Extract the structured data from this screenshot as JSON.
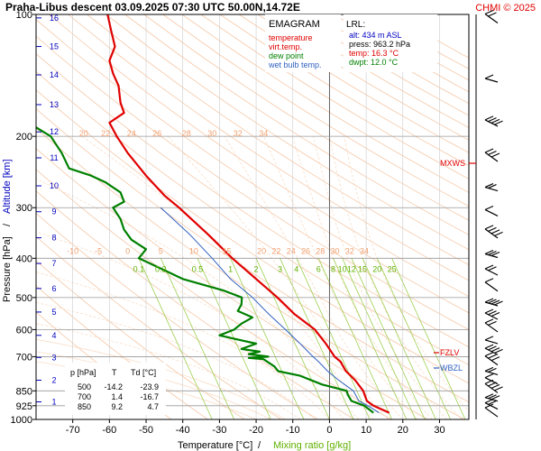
{
  "header": {
    "title": "Praha-Libus   descent   03.09.2025 07:30 UTC   50.00N,14.72E",
    "copyright": "CHMI © 2025"
  },
  "legend": {
    "title": "EMAGRAM",
    "items": [
      {
        "label": "temperature",
        "color": "#e00000"
      },
      {
        "label": "virt.temp.",
        "color": "#e00000"
      },
      {
        "label": "dew point",
        "color": "#008000"
      },
      {
        "label": "wet bulb temp.",
        "color": "#3060c0"
      }
    ]
  },
  "lrl": {
    "title": "LRL:",
    "lines": [
      {
        "text": "alt: 434 m ASL",
        "color": "#0000c0"
      },
      {
        "text": "press: 963.2 hPa",
        "color": "#000000"
      },
      {
        "text": "temp: 16.3 °C",
        "color": "#e00000"
      },
      {
        "text": "dwpt: 12.0 °C",
        "color": "#008000"
      }
    ]
  },
  "table": {
    "headers": [
      "p [hPa]",
      "T",
      "Td [°C]"
    ],
    "rows": [
      [
        "500",
        "-14.2",
        "-23.9"
      ],
      [
        "700",
        "1.4",
        "-16.7"
      ],
      [
        "850",
        "9.2",
        "4.7"
      ]
    ]
  },
  "axes": {
    "x_label": "Temperature [°C]",
    "x_label_sep": "/",
    "x_label2": "Mixing ratio [g/kg]",
    "y_label": "Pressure [hPa]",
    "y_label_sep": "/",
    "y_label2": "Altitude [km]"
  },
  "markers": {
    "mxws": "MXWS",
    "fzlv": "FZLV",
    "wbzl": "WBZL"
  },
  "chart_data": {
    "type": "line",
    "x_axis": {
      "label": "Temperature [°C]",
      "range": [
        -80,
        38
      ],
      "ticks": [
        -70,
        -60,
        -50,
        -40,
        -30,
        -20,
        -10,
        0,
        10,
        20,
        30
      ]
    },
    "y_axis": {
      "label": "Pressure [hPa]",
      "scale": "log",
      "range": [
        1000,
        100
      ],
      "ticks": [
        100,
        200,
        300,
        400,
        500,
        600,
        700,
        850,
        925,
        1000
      ]
    },
    "altitude_ticks_km": [
      1,
      2,
      3,
      4,
      5,
      6,
      7,
      8,
      9,
      10,
      11,
      12,
      13,
      14,
      15,
      16
    ],
    "altitude_tick_pressures": [
      905,
      800,
      703,
      620,
      543,
      475,
      412,
      356,
      307,
      265,
      226,
      195,
      167,
      141,
      120,
      102
    ],
    "dry_adiabat_labels": [
      {
        "text": "20",
        "p": 200,
        "t": -67
      },
      {
        "text": "22",
        "p": 200,
        "t": -61
      },
      {
        "text": "24",
        "p": 200,
        "t": -54
      },
      {
        "text": "26",
        "p": 200,
        "t": -47
      },
      {
        "text": "28",
        "p": 200,
        "t": -39
      },
      {
        "text": "30",
        "p": 200,
        "t": -32
      },
      {
        "text": "32",
        "p": 200,
        "t": -25
      },
      {
        "text": "34",
        "p": 200,
        "t": -18
      },
      {
        "text": "-10",
        "p": 390,
        "t": -70
      },
      {
        "text": "-5",
        "p": 390,
        "t": -63
      },
      {
        "text": "0",
        "p": 390,
        "t": -55
      },
      {
        "text": "5",
        "p": 390,
        "t": -46
      },
      {
        "text": "10",
        "p": 390,
        "t": -37
      },
      {
        "text": "15",
        "p": 390,
        "t": -28
      },
      {
        "text": "20",
        "p": 390,
        "t": -18.5
      },
      {
        "text": "22",
        "p": 390,
        "t": -14.5
      },
      {
        "text": "24",
        "p": 390,
        "t": -10.5
      },
      {
        "text": "26",
        "p": 390,
        "t": -6.5
      },
      {
        "text": "28",
        "p": 390,
        "t": -2.5
      },
      {
        "text": "30",
        "p": 390,
        "t": 1.5
      },
      {
        "text": "32",
        "p": 390,
        "t": 5.5
      },
      {
        "text": "34",
        "p": 390,
        "t": 9.5
      }
    ],
    "mixing_ratio_labels": [
      "0.1",
      "0.2",
      "0.5",
      "1",
      "2",
      "3",
      "4",
      "6",
      "8",
      "10",
      "12",
      "15",
      "20",
      "25"
    ],
    "mixing_ratio_label_temps": [
      -52,
      -46,
      -36,
      -27,
      -20,
      -13.5,
      -9,
      -3,
      1,
      3.5,
      6,
      9,
      13,
      17
    ],
    "series": [
      {
        "name": "temperature",
        "color": "#e00000",
        "points": [
          [
            963,
            16.3
          ],
          [
            925,
            12.0
          ],
          [
            900,
            10.2
          ],
          [
            850,
            9.2
          ],
          [
            800,
            7.0
          ],
          [
            760,
            4.5
          ],
          [
            720,
            3.0
          ],
          [
            700,
            1.4
          ],
          [
            650,
            -1.0
          ],
          [
            600,
            -4.0
          ],
          [
            550,
            -9.5
          ],
          [
            500,
            -14.2
          ],
          [
            450,
            -20.0
          ],
          [
            400,
            -26.5
          ],
          [
            350,
            -33.0
          ],
          [
            300,
            -41.0
          ],
          [
            280,
            -45.0
          ],
          [
            250,
            -50.0
          ],
          [
            220,
            -55.0
          ],
          [
            200,
            -58.0
          ],
          [
            185,
            -60.0
          ],
          [
            175,
            -56.0
          ],
          [
            165,
            -57.0
          ],
          [
            150,
            -57.5
          ],
          [
            140,
            -59.0
          ],
          [
            130,
            -60.0
          ],
          [
            120,
            -58.5
          ],
          [
            110,
            -59.5
          ],
          [
            100,
            -60.5
          ]
        ]
      },
      {
        "name": "dew point",
        "color": "#008000",
        "points": [
          [
            963,
            12.0
          ],
          [
            925,
            9.5
          ],
          [
            900,
            6.0
          ],
          [
            870,
            5.0
          ],
          [
            850,
            4.7
          ],
          [
            820,
            -2.0
          ],
          [
            780,
            -8.0
          ],
          [
            760,
            -14.0
          ],
          [
            740,
            -15.0
          ],
          [
            720,
            -17.0
          ],
          [
            710,
            -18.0
          ],
          [
            705,
            -22.0
          ],
          [
            700,
            -16.7
          ],
          [
            690,
            -22.0
          ],
          [
            680,
            -19.0
          ],
          [
            670,
            -24.0
          ],
          [
            650,
            -20.0
          ],
          [
            620,
            -30.0
          ],
          [
            600,
            -26.0
          ],
          [
            580,
            -24.0
          ],
          [
            560,
            -21.0
          ],
          [
            540,
            -25.0
          ],
          [
            520,
            -24.0
          ],
          [
            500,
            -23.9
          ],
          [
            480,
            -29.0
          ],
          [
            450,
            -40.0
          ],
          [
            420,
            -47.0
          ],
          [
            400,
            -52.0
          ],
          [
            380,
            -50.0
          ],
          [
            360,
            -54.0
          ],
          [
            340,
            -56.0
          ],
          [
            320,
            -57.0
          ],
          [
            300,
            -59.0
          ],
          [
            290,
            -56.0
          ],
          [
            275,
            -57.0
          ],
          [
            260,
            -61.0
          ],
          [
            250,
            -65.0
          ],
          [
            240,
            -71.0
          ],
          [
            220,
            -73.0
          ],
          [
            200,
            -76.0
          ],
          [
            190,
            -80.0
          ]
        ]
      },
      {
        "name": "wet bulb temp.",
        "color": "#3060c0",
        "points": [
          [
            963,
            13.5
          ],
          [
            925,
            10.5
          ],
          [
            900,
            8.0
          ],
          [
            850,
            6.5
          ],
          [
            800,
            2.5
          ],
          [
            760,
            -0.5
          ],
          [
            720,
            -3.0
          ],
          [
            700,
            -4.5
          ],
          [
            650,
            -8.0
          ],
          [
            600,
            -12.0
          ],
          [
            550,
            -16.5
          ],
          [
            500,
            -21.0
          ],
          [
            450,
            -27.0
          ],
          [
            400,
            -32.0
          ],
          [
            350,
            -38.0
          ],
          [
            300,
            -46.0
          ]
        ]
      }
    ],
    "wind_barbs_count": 22
  }
}
